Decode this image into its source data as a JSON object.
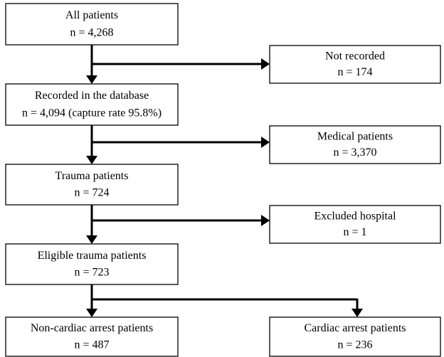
{
  "nodes": [
    {
      "label": "All patients",
      "count": "n = 4,268"
    },
    {
      "label": "Not recorded",
      "count": "n = 174"
    },
    {
      "label": "Recorded in the database",
      "count": "n = 4,094 (capture rate 95.8%)"
    },
    {
      "label": "Medical patients",
      "count": "n = 3,370"
    },
    {
      "label": "Trauma patients",
      "count": "n = 724"
    },
    {
      "label": "Excluded hospital",
      "count": "n = 1"
    },
    {
      "label": "Eligible trauma patients",
      "count": "n = 723"
    },
    {
      "label": "Non-cardiac arrest patients",
      "count": "n = 487"
    },
    {
      "label": "Cardiac arrest patients",
      "count": "n = 236"
    }
  ]
}
